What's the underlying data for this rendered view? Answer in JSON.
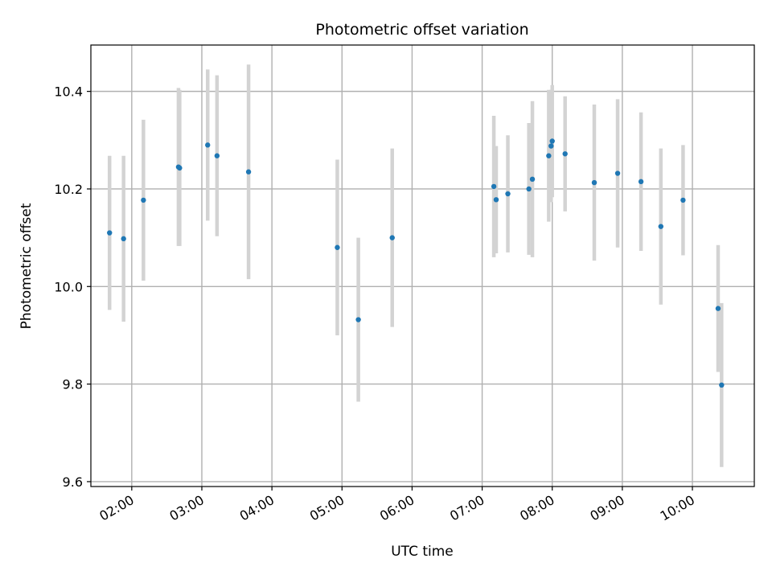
{
  "chart_data": {
    "type": "scatter",
    "title": "Photometric offset variation",
    "xlabel": "UTC time",
    "ylabel": "Photometric offset",
    "x_axis_type": "time",
    "xlim": [
      "01:25",
      "10:53"
    ],
    "ylim": [
      9.59,
      10.495
    ],
    "xticks": [
      "02:00",
      "03:00",
      "04:00",
      "05:00",
      "06:00",
      "07:00",
      "08:00",
      "09:00",
      "10:00"
    ],
    "yticks": [
      9.6,
      9.8,
      10.0,
      10.2,
      10.4
    ],
    "ytick_labels": [
      "9.6",
      "9.8",
      "10.0",
      "10.2",
      "10.4"
    ],
    "grid": true,
    "legend": "none",
    "marker_color": "#1f77b4",
    "errorbar_color": "#d3d3d3",
    "points": [
      {
        "t": "01:41",
        "y": 10.11,
        "err": 0.158
      },
      {
        "t": "01:53",
        "y": 10.098,
        "err": 0.17
      },
      {
        "t": "02:10",
        "y": 10.177,
        "err": 0.165
      },
      {
        "t": "02:40",
        "y": 10.245,
        "err": 0.162
      },
      {
        "t": "02:41",
        "y": 10.243,
        "err": 0.16
      },
      {
        "t": "03:05",
        "y": 10.29,
        "err": 0.155
      },
      {
        "t": "03:13",
        "y": 10.268,
        "err": 0.165
      },
      {
        "t": "03:40",
        "y": 10.235,
        "err": 0.22
      },
      {
        "t": "04:56",
        "y": 10.08,
        "err": 0.18
      },
      {
        "t": "05:14",
        "y": 9.932,
        "err": 0.168
      },
      {
        "t": "05:43",
        "y": 10.1,
        "err": 0.183
      },
      {
        "t": "07:10",
        "y": 10.205,
        "err": 0.145
      },
      {
        "t": "07:12",
        "y": 10.178,
        "err": 0.11
      },
      {
        "t": "07:22",
        "y": 10.19,
        "err": 0.12
      },
      {
        "t": "07:40",
        "y": 10.2,
        "err": 0.135
      },
      {
        "t": "07:43",
        "y": 10.22,
        "err": 0.16
      },
      {
        "t": "07:57",
        "y": 10.268,
        "err": 0.135
      },
      {
        "t": "07:59",
        "y": 10.288,
        "err": 0.115
      },
      {
        "t": "08:00",
        "y": 10.298,
        "err": 0.115
      },
      {
        "t": "08:11",
        "y": 10.272,
        "err": 0.118
      },
      {
        "t": "08:36",
        "y": 10.213,
        "err": 0.16
      },
      {
        "t": "08:56",
        "y": 10.232,
        "err": 0.152
      },
      {
        "t": "09:16",
        "y": 10.215,
        "err": 0.142
      },
      {
        "t": "09:33",
        "y": 10.123,
        "err": 0.16
      },
      {
        "t": "09:52",
        "y": 10.177,
        "err": 0.113
      },
      {
        "t": "10:22",
        "y": 9.955,
        "err": 0.13
      },
      {
        "t": "10:25",
        "y": 9.798,
        "err": 0.168
      }
    ]
  }
}
